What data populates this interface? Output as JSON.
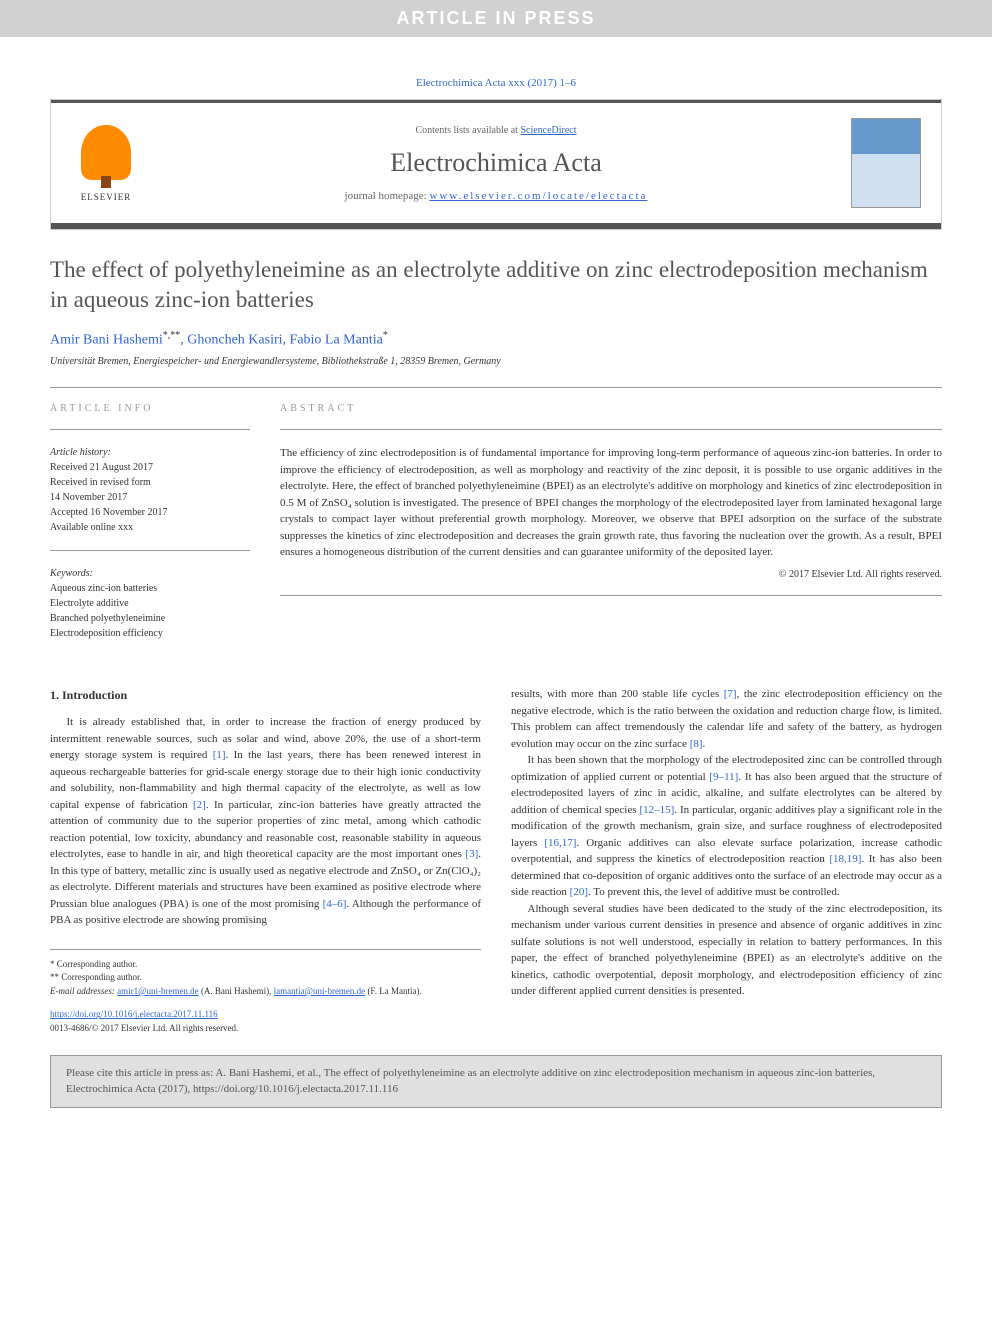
{
  "banner": "ARTICLE IN PRESS",
  "journal_ref": "Electrochimica Acta xxx (2017) 1–6",
  "header": {
    "contents_prefix": "Contents lists available at ",
    "contents_link": "ScienceDirect",
    "journal_name": "Electrochimica Acta",
    "homepage_prefix": "journal homepage: ",
    "homepage_url": "www.elsevier.com/locate/electacta",
    "publisher": "ELSEVIER"
  },
  "title": "The effect of polyethyleneimine as an electrolyte additive on zinc electrodeposition mechanism in aqueous zinc-ion batteries",
  "authors_html": "Amir Bani Hashemi<sup>*,**</sup>, Ghoncheh Kasiri, Fabio La Mantia<sup>*</sup>",
  "authors": [
    {
      "name": "Amir Bani Hashemi",
      "markers": "*,**"
    },
    {
      "name": "Ghoncheh Kasiri",
      "markers": ""
    },
    {
      "name": "Fabio La Mantia",
      "markers": "*"
    }
  ],
  "affiliation": "Universität Bremen, Energiespeicher- und Energiewandlersysteme, Bibliothekstraße 1, 28359 Bremen, Germany",
  "article_info": {
    "heading": "ARTICLE INFO",
    "history_label": "Article history:",
    "history": [
      "Received 21 August 2017",
      "Received in revised form",
      "14 November 2017",
      "Accepted 16 November 2017",
      "Available online xxx"
    ],
    "keywords_label": "Keywords:",
    "keywords": [
      "Aqueous zinc-ion batteries",
      "Electrolyte additive",
      "Branched polyethyleneimine",
      "Electrodeposition efficiency"
    ]
  },
  "abstract": {
    "heading": "ABSTRACT",
    "text": "The efficiency of zinc electrodeposition is of fundamental importance for improving long-term performance of aqueous zinc-ion batteries. In order to improve the efficiency of electrodeposition, as well as morphology and reactivity of the zinc deposit, it is possible to use organic additives in the electrolyte. Here, the effect of branched polyethyleneimine (BPEI) as an electrolyte's additive on morphology and kinetics of zinc electrodeposition in 0.5 M of ZnSO₄ solution is investigated. The presence of BPEI changes the morphology of the electrodeposited layer from laminated hexagonal large crystals to compact layer without preferential growth morphology. Moreover, we observe that BPEI adsorption on the surface of the substrate suppresses the kinetics of zinc electrodeposition and decreases the grain growth rate, thus favoring the nucleation over the growth. As a result, BPEI ensures a homogeneous distribution of the current densities and can guarantee uniformity of the deposited layer.",
    "copyright": "© 2017 Elsevier Ltd. All rights reserved."
  },
  "intro": {
    "heading": "1. Introduction",
    "p1_a": "It is already established that, in order to increase the fraction of energy produced by intermittent renewable sources, such as solar and wind, above 20%, the use of a short-term energy storage system is required ",
    "p1_ref1": "[1]",
    "p1_b": ". In the last years, there has been renewed interest in aqueous rechargeable batteries for grid-scale energy storage due to their high ionic conductivity and solubility, non-flammability and high thermal capacity of the electrolyte, as well as low capital expense of fabrication ",
    "p1_ref2": "[2]",
    "p1_c": ". In particular, zinc-ion batteries have greatly attracted the attention of community due to the superior properties of zinc metal, among which cathodic reaction potential, low toxicity, abundancy and reasonable cost, reasonable stability in aqueous electrolytes, ease to handle in air, and high theoretical capacity are the most important ones ",
    "p1_ref3": "[3]",
    "p1_d": ". In this type of battery, metallic zinc is usually used as negative electrode and ZnSO₄ or Zn(ClO₄)₂ as electrolyte. Different materials and structures have been examined as positive electrode where Prussian blue analogues (PBA) is one of the most promising ",
    "p1_ref4": "[4–6]",
    "p1_e": ". Although the performance of PBA as positive electrode are showing promising",
    "p2_a": "results, with more than 200 stable life cycles ",
    "p2_ref1": "[7]",
    "p2_b": ", the zinc electrodeposition efficiency on the negative electrode, which is the ratio between the oxidation and reduction charge flow, is limited. This problem can affect tremendously the calendar life and safety of the battery, as hydrogen evolution may occur on the zinc surface ",
    "p2_ref2": "[8]",
    "p2_c": ".",
    "p3_a": "It has been shown that the morphology of the electrodeposited zinc can be controlled through optimization of applied current or potential ",
    "p3_ref1": "[9–11]",
    "p3_b": ". It has also been argued that the structure of electrodeposited layers of zinc in acidic, alkaline, and sulfate electrolytes can be altered by addition of chemical species ",
    "p3_ref2": "[12–15]",
    "p3_c": ". In particular, organic additives play a significant role in the modification of the growth mechanism, grain size, and surface roughness of electrodeposited layers ",
    "p3_ref3": "[16,17]",
    "p3_d": ". Organic additives can also elevate surface polarization, increase cathodic overpotential, and suppress the kinetics of electrodeposition reaction ",
    "p3_ref4": "[18,19]",
    "p3_e": ". It has also been determined that co-deposition of organic additives onto the surface of an electrode may occur as a side reaction ",
    "p3_ref5": "[20]",
    "p3_f": ". To prevent this, the level of additive must be controlled.",
    "p4": "Although several studies have been dedicated to the study of the zinc electrodeposition, its mechanism under various current densities in presence and absence of organic additives in zinc sulfate solutions is not well understood, especially in relation to battery performances. In this paper, the effect of branched polyethyleneimine (BPEI) as an electrolyte's additive on the kinetics, cathodic overpotential, deposit morphology, and electrodeposition efficiency of zinc under different applied current densities is presented."
  },
  "footnotes": {
    "corr1": "* Corresponding author.",
    "corr2": "** Corresponding author.",
    "email_label": "E-mail addresses: ",
    "email1": "amir1@uni-bremen.de",
    "email1_name": " (A. Bani Hashemi), ",
    "email2": "lamantia@uni-bremen.de",
    "email2_name": " (F. La Mantia)."
  },
  "doi": {
    "url": "https://doi.org/10.1016/j.electacta.2017.11.116",
    "issn_line": "0013-4686/© 2017 Elsevier Ltd. All rights reserved."
  },
  "cite_box": "Please cite this article in press as: A. Bani Hashemi, et al., The effect of polyethyleneimine as an electrolyte additive on zinc electrodeposition mechanism in aqueous zinc-ion batteries, Electrochimica Acta (2017), https://doi.org/10.1016/j.electacta.2017.11.116",
  "colors": {
    "banner_bg": "#d0d0d0",
    "banner_text": "#ffffff",
    "link": "#3366cc",
    "header_bar": "#555555",
    "title_color": "#555555",
    "cite_bg": "#e0e0e0",
    "elsevier_orange": "#ff8c00"
  }
}
